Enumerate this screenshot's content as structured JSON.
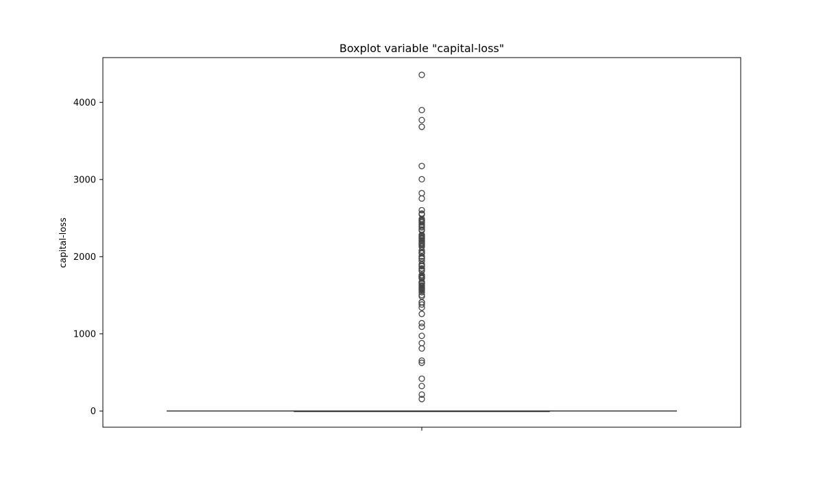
{
  "chart_data": {
    "type": "boxplot",
    "title": "Boxplot variable \"capital-loss\"",
    "xlabel": "",
    "ylabel": "capital-loss",
    "ylim": [
      -210,
      4580
    ],
    "yticks": [
      0,
      1000,
      2000,
      3000,
      4000
    ],
    "ytick_labels": [
      "0",
      "1000",
      "2000",
      "3000",
      "4000"
    ],
    "grid": false,
    "box": {
      "min": 0,
      "q1": 0,
      "median": 0,
      "q3": 0,
      "max": 0
    },
    "outliers": [
      155,
      213,
      323,
      419,
      625,
      653,
      810,
      880,
      974,
      1092,
      1138,
      1258,
      1340,
      1380,
      1408,
      1411,
      1485,
      1504,
      1539,
      1564,
      1573,
      1579,
      1590,
      1594,
      1602,
      1617,
      1628,
      1648,
      1651,
      1668,
      1669,
      1672,
      1719,
      1721,
      1726,
      1735,
      1740,
      1741,
      1755,
      1762,
      1816,
      1825,
      1844,
      1848,
      1876,
      1887,
      1902,
      1944,
      1974,
      1977,
      1980,
      2001,
      2002,
      2042,
      2051,
      2057,
      2080,
      2129,
      2149,
      2163,
      2174,
      2179,
      2201,
      2205,
      2206,
      2231,
      2238,
      2246,
      2258,
      2267,
      2282,
      2339,
      2352,
      2377,
      2392,
      2415,
      2444,
      2457,
      2467,
      2472,
      2489,
      2547,
      2559,
      2603,
      2754,
      2824,
      3004,
      3175,
      3683,
      3770,
      3900,
      4356
    ]
  }
}
